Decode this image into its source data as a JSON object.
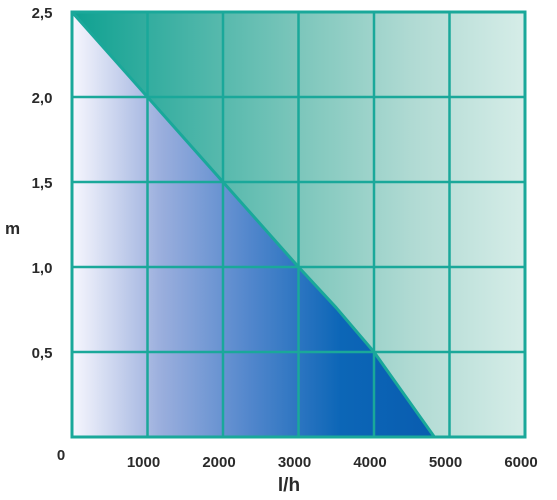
{
  "chart_data": {
    "type": "area",
    "x": [
      0,
      1000,
      2000,
      3000,
      3500,
      4000,
      4800
    ],
    "y": [
      2.5,
      2.0,
      1.5,
      1.0,
      0.76,
      0.5,
      0
    ],
    "xlabel": "l/h",
    "ylabel": "m",
    "xlim": [
      0,
      6000
    ],
    "ylim": [
      0,
      2.5
    ],
    "origin_label": "0",
    "xticks": {
      "values": [
        1000,
        2000,
        3000,
        4000,
        5000,
        6000
      ],
      "labels": [
        "1000",
        "2000",
        "3000",
        "4000",
        "5000",
        "6000"
      ]
    },
    "yticks": {
      "values": [
        0.5,
        1.0,
        1.5,
        2.0,
        2.5
      ],
      "labels": [
        "0,5",
        "1,0",
        "1,5",
        "2,0",
        "2,5"
      ]
    },
    "grid": true,
    "colors": {
      "line": "#1aa89a",
      "above_fill": [
        "#0ea191",
        "#45b3a6",
        "#7cc6bb",
        "#b0dad3",
        "#d6ede8"
      ],
      "below_fill": [
        "#f7f7fe",
        "#9aaedd",
        "#5186cc",
        "#0c66b7",
        "#095db0"
      ]
    }
  }
}
